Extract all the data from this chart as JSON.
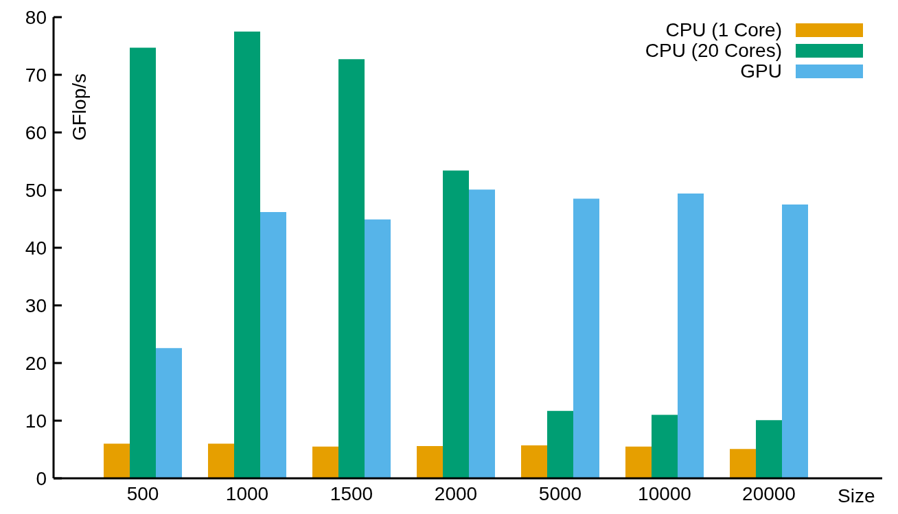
{
  "chart_data": {
    "type": "bar",
    "xlabel": "Size",
    "ylabel": "GFlop/s",
    "categories": [
      "500",
      "1000",
      "1500",
      "2000",
      "5000",
      "10000",
      "20000"
    ],
    "series": [
      {
        "name": "CPU (1 Core)",
        "color": "#e69f00",
        "values": [
          6.0,
          6.0,
          5.5,
          5.6,
          5.7,
          5.5,
          5.1
        ]
      },
      {
        "name": "CPU (20 Cores)",
        "color": "#009e73",
        "values": [
          74.7,
          77.5,
          72.7,
          53.4,
          11.7,
          11.0,
          10.1
        ]
      },
      {
        "name": "GPU",
        "color": "#56b4e9",
        "values": [
          22.6,
          46.2,
          44.9,
          50.1,
          48.5,
          49.4,
          47.5
        ]
      }
    ],
    "ylim": [
      0,
      80
    ],
    "yticks": [
      0,
      10,
      20,
      30,
      40,
      50,
      60,
      70,
      80
    ],
    "grid": false,
    "legend": "top right"
  }
}
